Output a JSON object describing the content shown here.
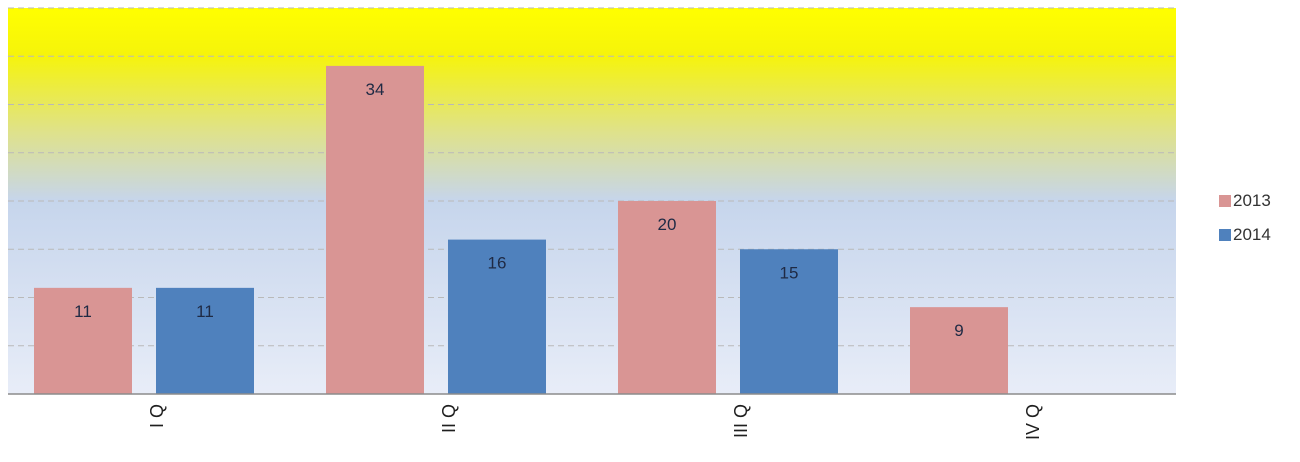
{
  "chart_data": {
    "type": "bar",
    "categories": [
      "I Q",
      "II Q",
      "III Q",
      "IV Q"
    ],
    "series": [
      {
        "name": "2013",
        "values": [
          11,
          34,
          20,
          9
        ],
        "color": "#d99594"
      },
      {
        "name": "2014",
        "values": [
          11,
          16,
          15,
          null
        ],
        "color": "#4f81bd"
      }
    ],
    "title": "",
    "xlabel": "",
    "ylabel": "",
    "ylim": [
      0,
      40
    ],
    "grid": true,
    "legend": "right",
    "background_gradient": [
      "#ffff00",
      "#c6d5ec",
      "#e8edf8"
    ]
  }
}
